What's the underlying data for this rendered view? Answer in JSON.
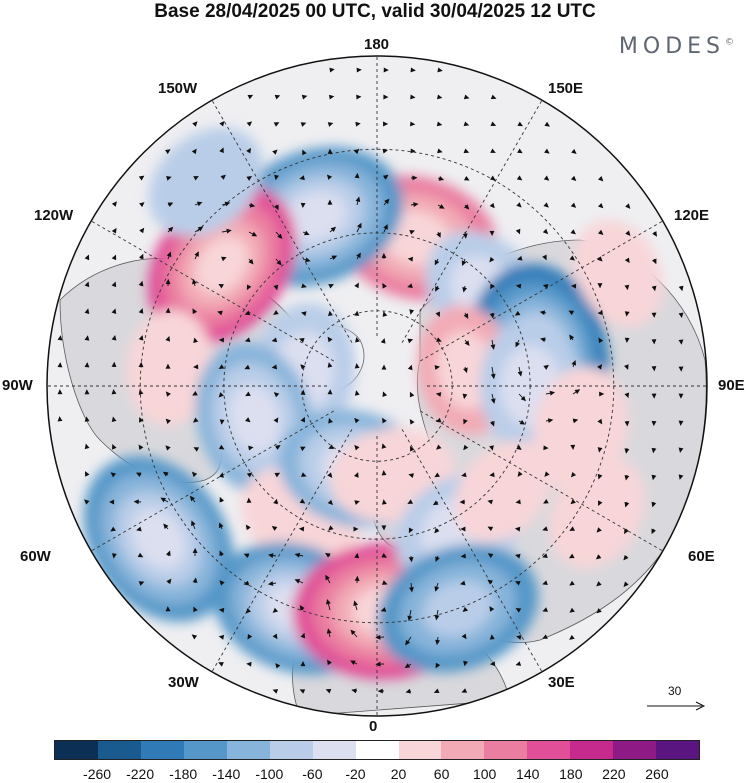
{
  "title": "Base 28/04/2025 00 UTC, valid 30/04/2025 12 UTC",
  "brand": "MODES",
  "brand_mark": "©",
  "longitude_labels": {
    "top": "180",
    "bottom": "0",
    "left": "90W",
    "right": "90E",
    "upper_left_1": "150W",
    "upper_left_2": "120W",
    "upper_right_1": "150E",
    "upper_right_2": "120E",
    "lower_left_1": "60W",
    "lower_left_2": "30W",
    "lower_right_1": "60E",
    "lower_right_2": "30E"
  },
  "vector_scale": "30",
  "colorbar": {
    "ticks": [
      "-260",
      "-220",
      "-180",
      "-140",
      "-100",
      "-60",
      "-20",
      "20",
      "60",
      "100",
      "140",
      "180",
      "220",
      "260"
    ],
    "colors": [
      "#0b2f55",
      "#1a5b8f",
      "#2f7ab7",
      "#5597c8",
      "#87b4da",
      "#b9cde8",
      "#dcdff0",
      "#ffffff",
      "#f8d5d8",
      "#f2aab6",
      "#ea7ea0",
      "#e14f98",
      "#c52a8c",
      "#8e1a86",
      "#5a1580"
    ]
  },
  "anomaly_centers": [
    {
      "lon": 165,
      "lat": 60,
      "value": 140
    },
    {
      "lon": -160,
      "lat": 55,
      "value": -170
    },
    {
      "lon": 130,
      "lat": 62,
      "value": -90
    },
    {
      "lon": -128,
      "lat": 52,
      "value": 160
    },
    {
      "lon": 100,
      "lat": 58,
      "value": -190
    },
    {
      "lon": 100,
      "lat": 72,
      "value": 70
    },
    {
      "lon": 90,
      "lat": 60,
      "value": -80
    },
    {
      "lon": 78,
      "lat": 50,
      "value": 60
    },
    {
      "lon": -95,
      "lat": 50,
      "value": 40
    },
    {
      "lon": -100,
      "lat": 75,
      "value": -90
    },
    {
      "lon": -75,
      "lat": 65,
      "value": -120
    },
    {
      "lon": -55,
      "lat": 40,
      "value": -170
    },
    {
      "lon": -30,
      "lat": 60,
      "value": 60
    },
    {
      "lon": -15,
      "lat": 73,
      "value": -120
    },
    {
      "lon": -20,
      "lat": 45,
      "value": -150
    },
    {
      "lon": 2,
      "lat": 47,
      "value": 180
    },
    {
      "lon": 10,
      "lat": 72,
      "value": 60
    },
    {
      "lon": 30,
      "lat": 58,
      "value": -80
    },
    {
      "lon": 20,
      "lat": 45,
      "value": -140
    },
    {
      "lon": 50,
      "lat": 58,
      "value": 30
    },
    {
      "lon": 60,
      "lat": 42,
      "value": 40
    },
    {
      "lon": -140,
      "lat": 40,
      "value": -60
    },
    {
      "lon": 115,
      "lat": 40,
      "value": 30
    }
  ]
}
